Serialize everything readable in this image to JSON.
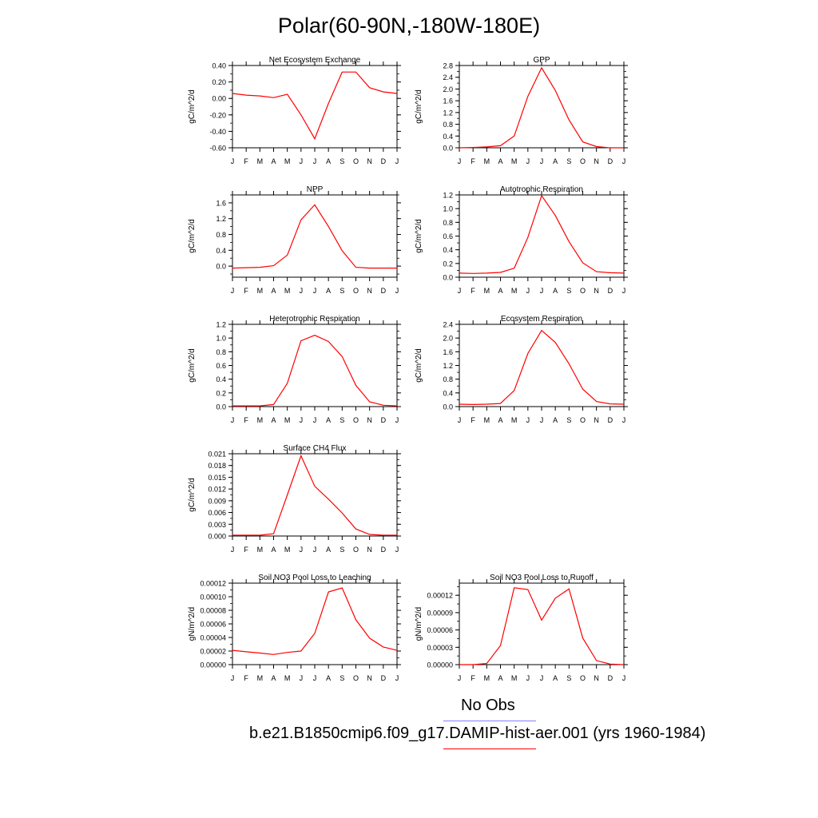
{
  "title": "Polar(60-90N,-180W-180E)",
  "months": [
    "J",
    "F",
    "M",
    "A",
    "M",
    "J",
    "J",
    "A",
    "S",
    "O",
    "N",
    "D",
    "J"
  ],
  "line_color": "#ff0000",
  "chart_data": [
    {
      "type": "line",
      "title": "Net Ecosystem Exchange",
      "ylabel": "gC/m^2/d",
      "ylim": [
        -0.6,
        0.4
      ],
      "yticks": [
        "0.40",
        "0.20",
        "0.00",
        "-0.20",
        "-0.40",
        "-0.60"
      ],
      "ytick_values": [
        0.4,
        0.2,
        0.0,
        -0.2,
        -0.4,
        -0.6
      ],
      "values": [
        0.06,
        0.04,
        0.03,
        0.01,
        0.05,
        -0.2,
        -0.49,
        -0.06,
        0.32,
        0.32,
        0.13,
        0.08,
        0.06
      ]
    },
    {
      "type": "line",
      "title": "GPP",
      "ylabel": "gC/m^2/d",
      "ylim": [
        0,
        2.8
      ],
      "yticks": [
        "2.8",
        "2.4",
        "2.0",
        "1.6",
        "1.2",
        "0.8",
        "0.4",
        "0.0"
      ],
      "ytick_values": [
        2.8,
        2.4,
        2.0,
        1.6,
        1.2,
        0.8,
        0.4,
        0.0
      ],
      "values": [
        0.0,
        0.01,
        0.03,
        0.07,
        0.4,
        1.75,
        2.72,
        1.95,
        0.95,
        0.2,
        0.04,
        0.0,
        0.0
      ]
    },
    {
      "type": "line",
      "title": "NPP",
      "ylabel": "gC/m^2/d",
      "ylim": [
        -0.28,
        1.8
      ],
      "yticks": [
        "1.6",
        "1.2",
        "0.8",
        "0.4",
        "0.0"
      ],
      "ytick_values": [
        1.6,
        1.2,
        0.8,
        0.4,
        0.0
      ],
      "values": [
        -0.05,
        -0.04,
        -0.03,
        0.01,
        0.28,
        1.17,
        1.55,
        1.0,
        0.39,
        -0.03,
        -0.05,
        -0.05,
        -0.05
      ]
    },
    {
      "type": "line",
      "title": "Autotrophic Respiration",
      "ylabel": "gC/m^2/d",
      "ylim": [
        0,
        1.2
      ],
      "yticks": [
        "1.2",
        "1.0",
        "0.8",
        "0.6",
        "0.4",
        "0.2",
        "0.0"
      ],
      "ytick_values": [
        1.2,
        1.0,
        0.8,
        0.6,
        0.4,
        0.2,
        0.0
      ],
      "values": [
        0.06,
        0.055,
        0.06,
        0.07,
        0.13,
        0.58,
        1.19,
        0.9,
        0.52,
        0.21,
        0.08,
        0.065,
        0.06
      ]
    },
    {
      "type": "line",
      "title": "Heterotrophic Respiration",
      "ylabel": "gC/m^2/d",
      "ylim": [
        0,
        1.2
      ],
      "yticks": [
        "1.2",
        "1.0",
        "0.8",
        "0.6",
        "0.4",
        "0.2",
        "0.0"
      ],
      "ytick_values": [
        1.2,
        1.0,
        0.8,
        0.6,
        0.4,
        0.2,
        0.0
      ],
      "values": [
        0.01,
        0.01,
        0.01,
        0.03,
        0.34,
        0.96,
        1.04,
        0.95,
        0.73,
        0.31,
        0.07,
        0.02,
        0.01
      ]
    },
    {
      "type": "line",
      "title": "Ecosystem Respiration",
      "ylabel": "gC/m^2/d",
      "ylim": [
        0,
        2.4
      ],
      "yticks": [
        "2.4",
        "2.0",
        "1.6",
        "1.2",
        "0.8",
        "0.4",
        "0.0"
      ],
      "ytick_values": [
        2.4,
        2.0,
        1.6,
        1.2,
        0.8,
        0.4,
        0.0
      ],
      "values": [
        0.07,
        0.06,
        0.07,
        0.09,
        0.47,
        1.55,
        2.22,
        1.87,
        1.25,
        0.51,
        0.15,
        0.08,
        0.07
      ]
    },
    {
      "type": "line",
      "title": "Surface CH4 Flux",
      "ylabel": "gC/m^2/d",
      "ylim": [
        0,
        0.021
      ],
      "yticks": [
        "0.021",
        "0.018",
        "0.015",
        "0.012",
        "0.009",
        "0.006",
        "0.003",
        "0.000"
      ],
      "ytick_values": [
        0.021,
        0.018,
        0.015,
        0.012,
        0.009,
        0.006,
        0.003,
        0.0
      ],
      "values": [
        0.0002,
        0.0002,
        0.0002,
        0.0006,
        0.0105,
        0.0205,
        0.0127,
        0.0094,
        0.0059,
        0.0018,
        0.0004,
        0.0002,
        0.0002
      ]
    },
    {
      "type": "line",
      "title": "Soil NO3 Pool Loss to Leaching",
      "ylabel": "gN/m^2/d",
      "ylim": [
        0,
        0.00012
      ],
      "yticks": [
        "0.00012",
        "0.00010",
        "0.00008",
        "0.00006",
        "0.00004",
        "0.00002",
        "0.00000"
      ],
      "ytick_values": [
        0.00012,
        0.0001,
        8e-05,
        6e-05,
        4e-05,
        2e-05,
        0.0
      ],
      "values": [
        2.1e-05,
        1.9e-05,
        1.7e-05,
        1.5e-05,
        1.8e-05,
        2e-05,
        4.6e-05,
        0.000107,
        0.000113,
        6.6e-05,
        3.9e-05,
        2.6e-05,
        2.1e-05
      ]
    },
    {
      "type": "line",
      "title": "Soil NO3 Pool Loss to Runoff",
      "ylabel": "gN/m^2/d",
      "ylim": [
        0,
        0.000141
      ],
      "yticks": [
        "0.00012",
        "0.00009",
        "0.00006",
        "0.00003",
        "0.00000"
      ],
      "ytick_values": [
        0.00012,
        9e-05,
        6e-05,
        3e-05,
        0.0
      ],
      "values": [
        0.0,
        0.0,
        2e-06,
        3.3e-05,
        0.000133,
        0.00013,
        7.7e-05,
        0.000115,
        0.000131,
        4.6e-05,
        7e-06,
        1e-06,
        0.0
      ]
    }
  ],
  "legend": {
    "obs_label": "No Obs",
    "obs_color": "#8080ff",
    "model_label": "b.e21.B1850cmip6.f09_g17.DAMIP-hist-aer.001 (yrs 1960-1984)",
    "model_color": "#ff0000"
  }
}
